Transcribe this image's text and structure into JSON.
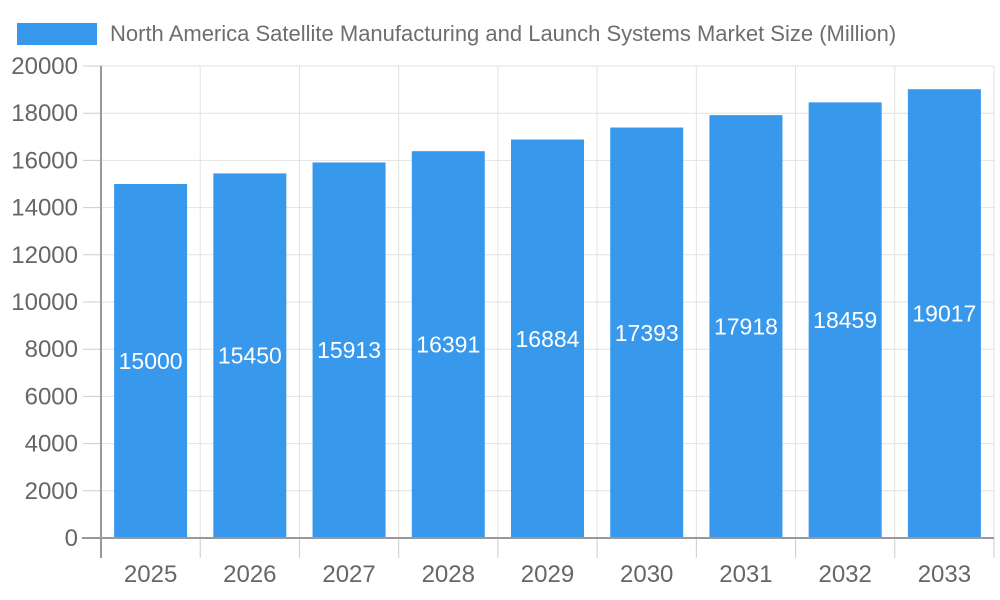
{
  "chart_data": {
    "type": "bar",
    "title": "North America Satellite Manufacturing and Launch Systems Market Size (Million)",
    "categories": [
      "2025",
      "2026",
      "2027",
      "2028",
      "2029",
      "2030",
      "2031",
      "2032",
      "2033"
    ],
    "values": [
      15000,
      15450,
      15913,
      16391,
      16884,
      17393,
      17918,
      18459,
      19017
    ],
    "yticks": [
      0,
      2000,
      4000,
      6000,
      8000,
      10000,
      12000,
      14000,
      16000,
      18000,
      20000
    ],
    "ylim": [
      0,
      20000
    ],
    "xlabel": "",
    "ylabel": "",
    "grid": true,
    "legend_position": "top-left",
    "bar_color": "#3899EC",
    "bar_label_color": "#ffffff"
  },
  "colors": {
    "axis": "#999999",
    "grid": "#e2e2e2",
    "tick": "#cccccc",
    "text": "#666666",
    "title_text": "#6e6e6e",
    "background": "#ffffff"
  }
}
